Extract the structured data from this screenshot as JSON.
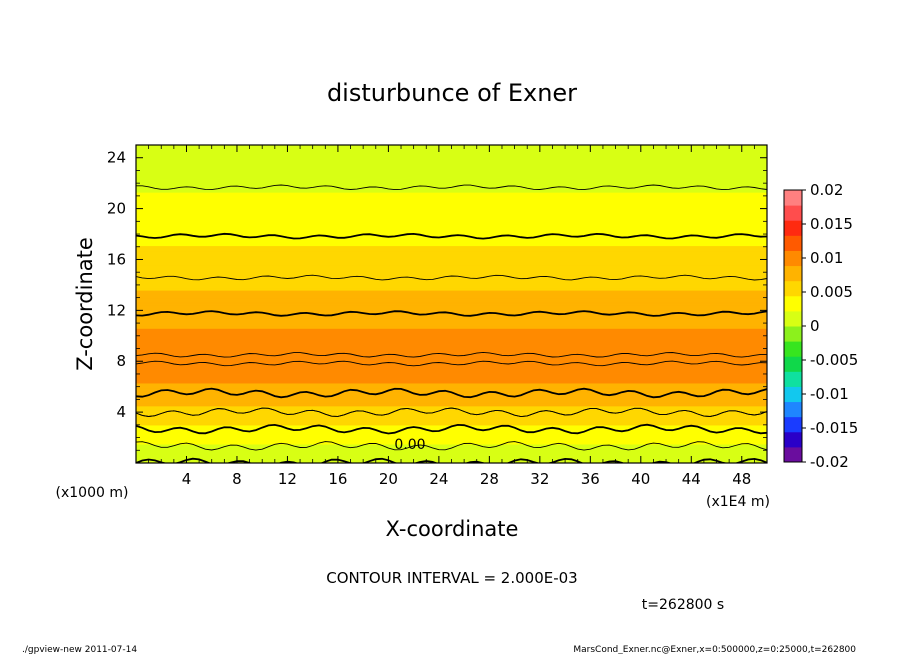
{
  "chart_data": {
    "type": "heatmap",
    "title": "disturbunce of Exner",
    "xlabel": "X-coordinate",
    "ylabel": "Z-coordinate",
    "x_unit_label": "(x1E4 m)",
    "y_unit_label": "(x1000 m)",
    "xlim": [
      0,
      50
    ],
    "ylim": [
      0,
      25
    ],
    "x_ticks": [
      4,
      8,
      12,
      16,
      20,
      24,
      28,
      32,
      36,
      40,
      44,
      48
    ],
    "y_ticks": [
      4,
      8,
      12,
      16,
      20,
      24
    ],
    "x_tick_labels": [
      "4",
      "8",
      "12",
      "16",
      "20",
      "24",
      "28",
      "32",
      "36",
      "40",
      "44",
      "48"
    ],
    "y_tick_labels": [
      "4",
      "8",
      "12",
      "16",
      "20",
      "24"
    ],
    "colorbar": {
      "min": -0.02,
      "max": 0.02,
      "ticks": [
        0.02,
        0.015,
        0.01,
        0.005,
        0,
        -0.005,
        -0.01,
        -0.015,
        -0.02
      ],
      "tick_labels": [
        "0.02",
        "0.015",
        "0.01",
        "0.005",
        "0",
        "-0.005",
        "-0.01",
        "-0.015",
        "-0.02"
      ],
      "colors": [
        "#6a0d9e",
        "#2a00c8",
        "#1a3cff",
        "#1f86ff",
        "#12c8ee",
        "#0fe0a0",
        "#10d84a",
        "#37e51f",
        "#8cf11c",
        "#d8ff14",
        "#ffff00",
        "#ffd700",
        "#ffb300",
        "#ff8a00",
        "#ff5a00",
        "#ff2a10",
        "#ff4d4d",
        "#ff8080"
      ]
    },
    "profile": {
      "z": [
        0,
        1,
        2,
        3,
        4,
        5,
        6,
        7,
        8,
        9,
        10,
        11,
        12,
        13,
        14,
        15,
        16,
        17,
        18,
        19,
        20,
        21,
        22,
        23,
        24,
        25
      ],
      "value": [
        0.0,
        0.0015,
        0.003,
        0.0045,
        0.006,
        0.0074,
        0.0086,
        0.0095,
        0.0101,
        0.0099,
        0.0093,
        0.0086,
        0.0078,
        0.0071,
        0.0064,
        0.0057,
        0.0051,
        0.0045,
        0.0039,
        0.0034,
        0.0029,
        0.0024,
        0.0018,
        0.0013,
        0.0008,
        0.0004
      ]
    },
    "contour_interval": "2.000E-03",
    "contour_label": "0.00",
    "annotations": [
      "CONTOUR INTERVAL = 2.000E-03",
      "t=262800 s"
    ]
  },
  "footer": {
    "left": "./gpview-new   2011-07-14",
    "right": "MarsCond_Exner.nc@Exner,x=0:500000,z=0:25000,t=262800"
  }
}
